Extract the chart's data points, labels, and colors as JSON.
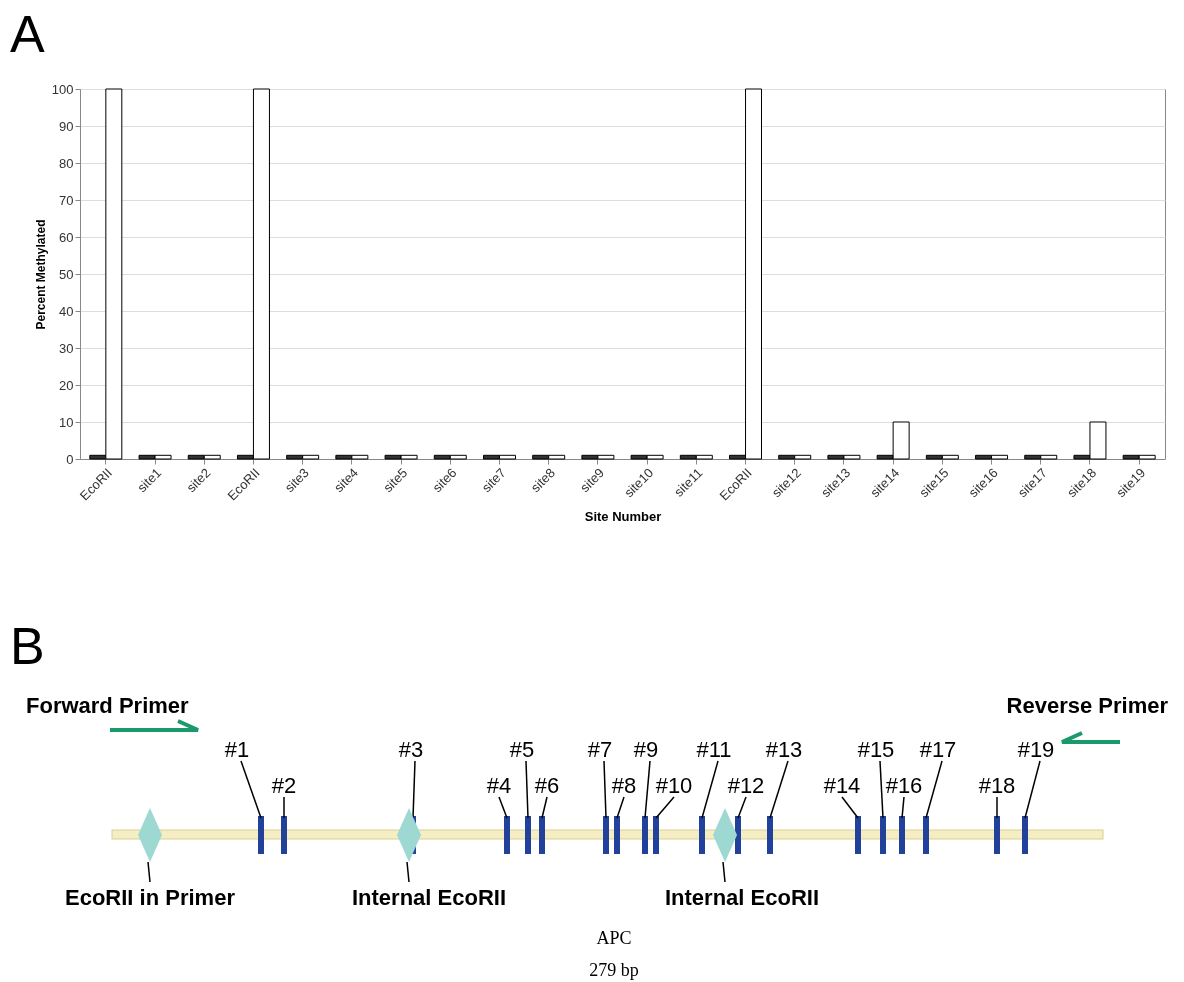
{
  "chart_data": [
    {
      "type": "bar",
      "title": "A",
      "xlabel": "Site Number",
      "ylabel": "Percent Methylated",
      "categories": [
        "EcoRII",
        "site1",
        "site2",
        "EcoRII",
        "site3",
        "site4",
        "site5",
        "site6",
        "site7",
        "site8",
        "site9",
        "site10",
        "site11",
        "EcoRII",
        "site12",
        "site13",
        "site14",
        "site15",
        "site16",
        "site17",
        "site18",
        "site19"
      ],
      "series": [
        {
          "color": "#333333",
          "values": [
            1,
            1,
            1,
            1,
            1,
            1,
            1,
            1,
            1,
            1,
            1,
            1,
            1,
            1,
            1,
            1,
            1,
            1,
            1,
            1,
            1,
            1
          ]
        },
        {
          "color": "#ffffff",
          "values": [
            100,
            1,
            1,
            100,
            1,
            1,
            1,
            1,
            1,
            1,
            1,
            1,
            1,
            100,
            1,
            1,
            10,
            1,
            1,
            1,
            10,
            1
          ]
        }
      ],
      "ylim": [
        0,
        100
      ],
      "yticks": [
        0,
        10,
        20,
        30,
        40,
        50,
        60,
        70,
        80,
        90,
        100
      ],
      "grid": "y",
      "legend": false
    },
    {
      "type": "other",
      "title": "B",
      "annotations": [
        "Forward Primer",
        "Reverse Primer",
        "#1",
        "#2",
        "#3",
        "#4",
        "#5",
        "#6",
        "#7",
        "#8",
        "#9",
        "#10",
        "#11",
        "#12",
        "#13",
        "#14",
        "#15",
        "#16",
        "#17",
        "#18",
        "#19",
        "EcoRII in Primer",
        "Internal EcoRII",
        "Internal EcoRII",
        "APC",
        "279 bp"
      ]
    }
  ]
}
